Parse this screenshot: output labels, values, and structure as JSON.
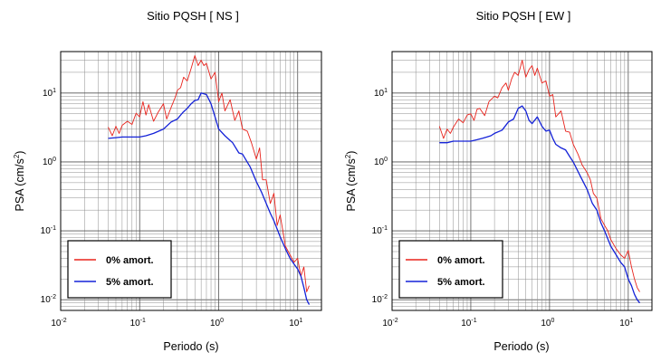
{
  "charts": [
    {
      "title": "Sitio PQSH [ NS ]",
      "xlabel": "Periodo (s)",
      "ylabel_main": "PSA (cm/s",
      "ylabel_sup": "2",
      "ylabel_end": ")",
      "legend": [
        {
          "label": "0% amort.",
          "color": "#e8231c"
        },
        {
          "label": "5% amort.",
          "color": "#1422d8"
        }
      ]
    },
    {
      "title": "Sitio PQSH [ EW ]",
      "xlabel": "Periodo (s)",
      "ylabel_main": "PSA (cm/s",
      "ylabel_sup": "2",
      "ylabel_end": ")",
      "legend": [
        {
          "label": "0% amort.",
          "color": "#e8231c"
        },
        {
          "label": "5% amort.",
          "color": "#1422d8"
        }
      ]
    }
  ],
  "ticks": {
    "x": [
      {
        "base": "10",
        "exp": "-2"
      },
      {
        "base": "10",
        "exp": "-1"
      },
      {
        "base": "10",
        "exp": "0"
      },
      {
        "base": "10",
        "exp": "1"
      }
    ],
    "y": [
      {
        "base": "10",
        "exp": "-2"
      },
      {
        "base": "10",
        "exp": "-1"
      },
      {
        "base": "10",
        "exp": "0"
      },
      {
        "base": "10",
        "exp": "1"
      }
    ]
  },
  "chart_data": [
    {
      "type": "line",
      "title": "Sitio PQSH [ NS ]",
      "xlabel": "Periodo (s)",
      "ylabel": "PSA (cm/s2)",
      "xscale": "log",
      "yscale": "log",
      "xlim": [
        0.01,
        20
      ],
      "ylim": [
        0.007,
        40
      ],
      "grid": true,
      "legend_position": "bottom-left",
      "series": [
        {
          "name": "0% amort.",
          "color": "#e8231c",
          "x": [
            0.04,
            0.045,
            0.05,
            0.055,
            0.06,
            0.07,
            0.08,
            0.09,
            0.1,
            0.11,
            0.12,
            0.13,
            0.15,
            0.17,
            0.2,
            0.22,
            0.25,
            0.28,
            0.3,
            0.33,
            0.36,
            0.4,
            0.45,
            0.5,
            0.55,
            0.6,
            0.65,
            0.7,
            0.8,
            0.9,
            1.0,
            1.1,
            1.2,
            1.4,
            1.6,
            1.8,
            2.0,
            2.3,
            2.6,
            3.0,
            3.3,
            3.6,
            4.0,
            4.5,
            5.0,
            5.5,
            6.0,
            7.0,
            8.0,
            9.0,
            10,
            11,
            12,
            13,
            14
          ],
          "y": [
            3.2,
            2.4,
            3.3,
            2.6,
            3.4,
            3.9,
            3.5,
            5.1,
            4.5,
            7.5,
            4.8,
            6.8,
            3.9,
            5.2,
            7.0,
            4.2,
            6.2,
            8.5,
            11,
            12,
            17,
            15,
            23,
            35,
            25,
            30,
            25,
            27,
            16,
            20,
            7.5,
            10,
            5.5,
            8.0,
            4.0,
            5.5,
            3.0,
            2.8,
            1.9,
            1.1,
            1.6,
            0.55,
            0.55,
            0.25,
            0.35,
            0.12,
            0.17,
            0.06,
            0.045,
            0.035,
            0.04,
            0.022,
            0.03,
            0.013,
            0.016
          ]
        },
        {
          "name": "5% amort.",
          "color": "#1422d8",
          "x": [
            0.04,
            0.05,
            0.06,
            0.08,
            0.1,
            0.12,
            0.15,
            0.2,
            0.25,
            0.3,
            0.35,
            0.4,
            0.45,
            0.5,
            0.55,
            0.6,
            0.7,
            0.8,
            0.9,
            1.0,
            1.2,
            1.5,
            1.8,
            2.0,
            2.5,
            3.0,
            3.5,
            4.0,
            4.5,
            5.0,
            6.0,
            7.0,
            8.0,
            9.0,
            10,
            11,
            12,
            13,
            14
          ],
          "y": [
            2.2,
            2.25,
            2.3,
            2.3,
            2.3,
            2.4,
            2.6,
            3.0,
            3.8,
            4.2,
            5.2,
            6.0,
            7.0,
            7.8,
            8.0,
            10,
            9.5,
            7.0,
            4.5,
            3.0,
            2.4,
            1.9,
            1.35,
            1.3,
            0.85,
            0.52,
            0.36,
            0.25,
            0.18,
            0.14,
            0.082,
            0.055,
            0.04,
            0.033,
            0.028,
            0.022,
            0.015,
            0.01,
            0.0085
          ]
        }
      ]
    },
    {
      "type": "line",
      "title": "Sitio PQSH [ EW ]",
      "xlabel": "Periodo (s)",
      "ylabel": "PSA (cm/s2)",
      "xscale": "log",
      "yscale": "log",
      "xlim": [
        0.01,
        20
      ],
      "ylim": [
        0.007,
        40
      ],
      "grid": true,
      "legend_position": "bottom-left",
      "series": [
        {
          "name": "0% amort.",
          "color": "#e8231c",
          "x": [
            0.04,
            0.045,
            0.05,
            0.055,
            0.06,
            0.07,
            0.08,
            0.09,
            0.1,
            0.11,
            0.12,
            0.13,
            0.15,
            0.17,
            0.2,
            0.22,
            0.25,
            0.28,
            0.3,
            0.33,
            0.36,
            0.4,
            0.45,
            0.5,
            0.55,
            0.6,
            0.65,
            0.7,
            0.8,
            0.9,
            1.0,
            1.1,
            1.2,
            1.4,
            1.6,
            1.8,
            2.0,
            2.3,
            2.6,
            3.0,
            3.3,
            3.6,
            4.0,
            4.5,
            5.0,
            5.5,
            6.0,
            7.0,
            8.0,
            9.0,
            10,
            11,
            12,
            13,
            14
          ],
          "y": [
            3.3,
            2.2,
            3.0,
            2.6,
            3.2,
            4.2,
            3.7,
            4.8,
            5.0,
            4.0,
            5.8,
            6.0,
            4.7,
            7.5,
            9.0,
            8.5,
            12,
            14,
            11,
            16,
            20,
            18,
            30,
            17,
            22,
            25,
            18,
            23,
            14,
            15,
            9.0,
            9.5,
            4.5,
            5.5,
            2.8,
            2.7,
            1.8,
            1.3,
            0.9,
            0.7,
            0.55,
            0.35,
            0.3,
            0.15,
            0.12,
            0.1,
            0.075,
            0.055,
            0.045,
            0.04,
            0.052,
            0.03,
            0.02,
            0.015,
            0.013
          ]
        },
        {
          "name": "5% amort.",
          "color": "#1422d8",
          "x": [
            0.04,
            0.05,
            0.06,
            0.07,
            0.08,
            0.1,
            0.12,
            0.14,
            0.16,
            0.18,
            0.2,
            0.25,
            0.3,
            0.35,
            0.4,
            0.45,
            0.5,
            0.55,
            0.6,
            0.7,
            0.8,
            0.9,
            1.0,
            1.1,
            1.2,
            1.4,
            1.6,
            1.8,
            2.0,
            2.5,
            3.0,
            3.5,
            4.0,
            4.5,
            5.0,
            6.0,
            7.0,
            8.0,
            9.0,
            10,
            11,
            12,
            13,
            14
          ],
          "y": [
            1.9,
            1.9,
            2.0,
            2.0,
            2.0,
            2.0,
            2.1,
            2.2,
            2.3,
            2.4,
            2.6,
            2.9,
            3.8,
            4.2,
            6.0,
            6.5,
            5.5,
            4.0,
            3.6,
            4.5,
            3.3,
            2.8,
            2.9,
            2.2,
            1.8,
            1.6,
            1.5,
            1.2,
            1.0,
            0.6,
            0.4,
            0.25,
            0.2,
            0.13,
            0.1,
            0.06,
            0.045,
            0.035,
            0.03,
            0.02,
            0.016,
            0.012,
            0.01,
            0.009
          ]
        }
      ]
    }
  ]
}
